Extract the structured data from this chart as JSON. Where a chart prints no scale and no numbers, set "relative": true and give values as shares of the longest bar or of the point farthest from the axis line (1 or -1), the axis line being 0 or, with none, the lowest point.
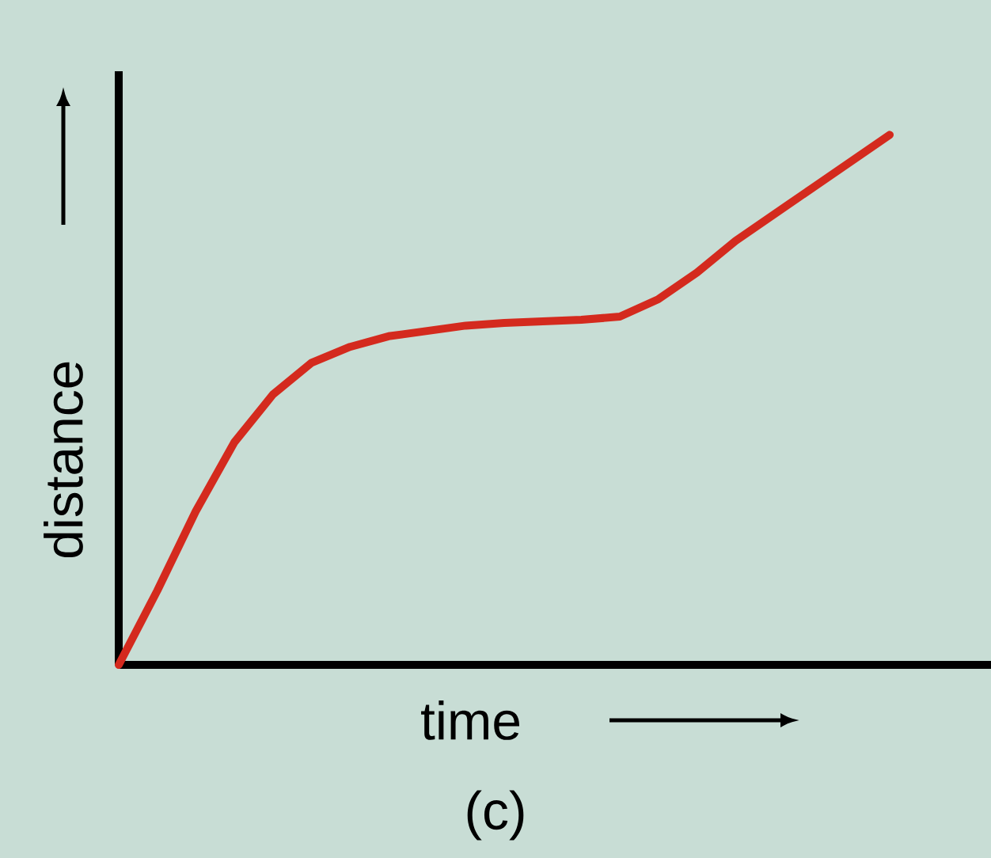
{
  "chart_data": {
    "type": "line",
    "relative": true,
    "xlabel": "time",
    "ylabel": "distance",
    "annotations": [
      "(c)"
    ],
    "categories": [
      null,
      null,
      null,
      null,
      null,
      null,
      null,
      null,
      null,
      null,
      null,
      null,
      null,
      null,
      null,
      null,
      null,
      null,
      null,
      null,
      null
    ],
    "series": [
      {
        "color": "#d42a1e",
        "values": [
          0,
          0.14,
          0.29,
          0.42,
          0.51,
          0.57,
          0.6,
          0.62,
          0.63,
          0.64,
          0.645,
          0.648,
          0.651,
          0.657,
          0.69,
          0.74,
          0.8,
          0.85,
          0.9,
          0.95,
          1
        ]
      }
    ]
  }
}
